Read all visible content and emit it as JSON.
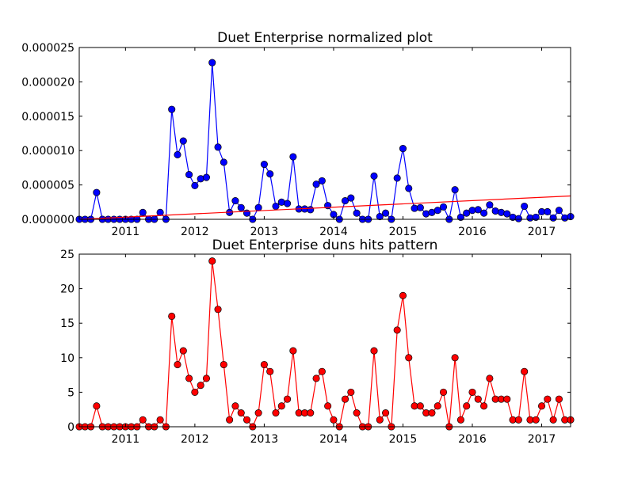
{
  "chart_data": [
    {
      "type": "line",
      "title": "Duet Enterprise normalized plot",
      "xlabel": "",
      "ylabel": "",
      "x_axis": {
        "type": "date",
        "range": [
          "2010-05",
          "2017-06"
        ],
        "ticks": [
          "2011",
          "2012",
          "2013",
          "2014",
          "2015",
          "2016",
          "2017"
        ]
      },
      "y_axis": {
        "range": [
          0,
          2.5e-05
        ],
        "ticks": [
          "0.000000",
          "0.000005",
          "0.000010",
          "0.000015",
          "0.000020",
          "0.000025"
        ]
      },
      "grid": false,
      "series": [
        {
          "color": "#0000ff",
          "marker": "circle",
          "points": [
            [
              "2010-05",
              0.0
            ],
            [
              "2010-06",
              0.0
            ],
            [
              "2010-07",
              0.0
            ],
            [
              "2010-08",
              3.9e-06
            ],
            [
              "2010-09",
              0.0
            ],
            [
              "2010-10",
              0.0
            ],
            [
              "2010-11",
              0.0
            ],
            [
              "2010-12",
              0.0
            ],
            [
              "2011-01",
              0.0
            ],
            [
              "2011-02",
              0.0
            ],
            [
              "2011-03",
              0.0
            ],
            [
              "2011-04",
              1e-06
            ],
            [
              "2011-05",
              0.0
            ],
            [
              "2011-06",
              0.0
            ],
            [
              "2011-07",
              1e-06
            ],
            [
              "2011-08",
              0.0
            ],
            [
              "2011-09",
              1.6e-05
            ],
            [
              "2011-10",
              9.4e-06
            ],
            [
              "2011-11",
              1.14e-05
            ],
            [
              "2011-12",
              6.5e-06
            ],
            [
              "2012-01",
              4.9e-06
            ],
            [
              "2012-02",
              5.9e-06
            ],
            [
              "2012-03",
              6.1e-06
            ],
            [
              "2012-04",
              2.28e-05
            ],
            [
              "2012-05",
              1.05e-05
            ],
            [
              "2012-06",
              8.3e-06
            ],
            [
              "2012-07",
              1e-06
            ],
            [
              "2012-08",
              2.7e-06
            ],
            [
              "2012-09",
              1.7e-06
            ],
            [
              "2012-10",
              9e-07
            ],
            [
              "2012-11",
              0.0
            ],
            [
              "2012-12",
              1.7e-06
            ],
            [
              "2013-01",
              8e-06
            ],
            [
              "2013-02",
              6.6e-06
            ],
            [
              "2013-03",
              1.9e-06
            ],
            [
              "2013-04",
              2.5e-06
            ],
            [
              "2013-05",
              2.3e-06
            ],
            [
              "2013-06",
              9.1e-06
            ],
            [
              "2013-07",
              1.5e-06
            ],
            [
              "2013-08",
              1.5e-06
            ],
            [
              "2013-09",
              1.4e-06
            ],
            [
              "2013-10",
              5.1e-06
            ],
            [
              "2013-11",
              5.6e-06
            ],
            [
              "2013-12",
              2e-06
            ],
            [
              "2014-01",
              7e-07
            ],
            [
              "2014-02",
              0.0
            ],
            [
              "2014-03",
              2.7e-06
            ],
            [
              "2014-04",
              3.1e-06
            ],
            [
              "2014-05",
              9e-07
            ],
            [
              "2014-06",
              0.0
            ],
            [
              "2014-07",
              0.0
            ],
            [
              "2014-08",
              6.3e-06
            ],
            [
              "2014-09",
              4e-07
            ],
            [
              "2014-10",
              9e-07
            ],
            [
              "2014-11",
              0.0
            ],
            [
              "2014-12",
              6e-06
            ],
            [
              "2015-01",
              1.03e-05
            ],
            [
              "2015-02",
              4.5e-06
            ],
            [
              "2015-03",
              1.6e-06
            ],
            [
              "2015-04",
              1.7e-06
            ],
            [
              "2015-05",
              8e-07
            ],
            [
              "2015-06",
              1e-06
            ],
            [
              "2015-07",
              1.3e-06
            ],
            [
              "2015-08",
              1.8e-06
            ],
            [
              "2015-09",
              0.0
            ],
            [
              "2015-10",
              4.3e-06
            ],
            [
              "2015-11",
              3e-07
            ],
            [
              "2015-12",
              9e-07
            ],
            [
              "2016-01",
              1.3e-06
            ],
            [
              "2016-02",
              1.4e-06
            ],
            [
              "2016-03",
              9e-07
            ],
            [
              "2016-04",
              2.1e-06
            ],
            [
              "2016-05",
              1.2e-06
            ],
            [
              "2016-06",
              1e-06
            ],
            [
              "2016-07",
              8e-07
            ],
            [
              "2016-08",
              3e-07
            ],
            [
              "2016-09",
              1e-07
            ],
            [
              "2016-10",
              1.9e-06
            ],
            [
              "2016-11",
              2e-07
            ],
            [
              "2016-12",
              3e-07
            ],
            [
              "2017-01",
              1.1e-06
            ],
            [
              "2017-02",
              1.1e-06
            ],
            [
              "2017-03",
              2e-07
            ],
            [
              "2017-04",
              1.3e-06
            ],
            [
              "2017-05",
              2e-07
            ],
            [
              "2017-06",
              4e-07
            ]
          ]
        },
        {
          "color": "#ff0000",
          "marker": "none",
          "points": [
            [
              "2010-05",
              0.0
            ],
            [
              "2017-06",
              3.4e-06
            ]
          ]
        }
      ]
    },
    {
      "type": "line",
      "title": "Duet Enterprise duns hits pattern",
      "xlabel": "",
      "ylabel": "",
      "x_axis": {
        "type": "date",
        "range": [
          "2010-05",
          "2017-06"
        ],
        "ticks": [
          "2011",
          "2012",
          "2013",
          "2014",
          "2015",
          "2016",
          "2017"
        ]
      },
      "y_axis": {
        "range": [
          0,
          25
        ],
        "ticks": [
          "0",
          "5",
          "10",
          "15",
          "20",
          "25"
        ]
      },
      "grid": false,
      "series": [
        {
          "color": "#ff0000",
          "marker": "circle",
          "points": [
            [
              "2010-05",
              0
            ],
            [
              "2010-06",
              0
            ],
            [
              "2010-07",
              0
            ],
            [
              "2010-08",
              3
            ],
            [
              "2010-09",
              0
            ],
            [
              "2010-10",
              0
            ],
            [
              "2010-11",
              0
            ],
            [
              "2010-12",
              0
            ],
            [
              "2011-01",
              0
            ],
            [
              "2011-02",
              0
            ],
            [
              "2011-03",
              0
            ],
            [
              "2011-04",
              1
            ],
            [
              "2011-05",
              0
            ],
            [
              "2011-06",
              0
            ],
            [
              "2011-07",
              1
            ],
            [
              "2011-08",
              0
            ],
            [
              "2011-09",
              16
            ],
            [
              "2011-10",
              9
            ],
            [
              "2011-11",
              11
            ],
            [
              "2011-12",
              7
            ],
            [
              "2012-01",
              5
            ],
            [
              "2012-02",
              6
            ],
            [
              "2012-03",
              7
            ],
            [
              "2012-04",
              24
            ],
            [
              "2012-05",
              17
            ],
            [
              "2012-06",
              9
            ],
            [
              "2012-07",
              1
            ],
            [
              "2012-08",
              3
            ],
            [
              "2012-09",
              2
            ],
            [
              "2012-10",
              1
            ],
            [
              "2012-11",
              0
            ],
            [
              "2012-12",
              2
            ],
            [
              "2013-01",
              9
            ],
            [
              "2013-02",
              8
            ],
            [
              "2013-03",
              2
            ],
            [
              "2013-04",
              3
            ],
            [
              "2013-05",
              4
            ],
            [
              "2013-06",
              11
            ],
            [
              "2013-07",
              2
            ],
            [
              "2013-08",
              2
            ],
            [
              "2013-09",
              2
            ],
            [
              "2013-10",
              7
            ],
            [
              "2013-11",
              8
            ],
            [
              "2013-12",
              3
            ],
            [
              "2014-01",
              1
            ],
            [
              "2014-02",
              0
            ],
            [
              "2014-03",
              4
            ],
            [
              "2014-04",
              5
            ],
            [
              "2014-05",
              2
            ],
            [
              "2014-06",
              0
            ],
            [
              "2014-07",
              0
            ],
            [
              "2014-08",
              11
            ],
            [
              "2014-09",
              1
            ],
            [
              "2014-10",
              2
            ],
            [
              "2014-11",
              0
            ],
            [
              "2014-12",
              14
            ],
            [
              "2015-01",
              19
            ],
            [
              "2015-02",
              10
            ],
            [
              "2015-03",
              3
            ],
            [
              "2015-04",
              3
            ],
            [
              "2015-05",
              2
            ],
            [
              "2015-06",
              2
            ],
            [
              "2015-07",
              3
            ],
            [
              "2015-08",
              5
            ],
            [
              "2015-09",
              0
            ],
            [
              "2015-10",
              10
            ],
            [
              "2015-11",
              1
            ],
            [
              "2015-12",
              3
            ],
            [
              "2016-01",
              5
            ],
            [
              "2016-02",
              4
            ],
            [
              "2016-03",
              3
            ],
            [
              "2016-04",
              7
            ],
            [
              "2016-05",
              4
            ],
            [
              "2016-06",
              4
            ],
            [
              "2016-07",
              4
            ],
            [
              "2016-08",
              1
            ],
            [
              "2016-09",
              1
            ],
            [
              "2016-10",
              8
            ],
            [
              "2016-11",
              1
            ],
            [
              "2016-12",
              1
            ],
            [
              "2017-01",
              3
            ],
            [
              "2017-02",
              4
            ],
            [
              "2017-03",
              1
            ],
            [
              "2017-04",
              4
            ],
            [
              "2017-05",
              1
            ],
            [
              "2017-06",
              1
            ]
          ]
        }
      ]
    }
  ]
}
